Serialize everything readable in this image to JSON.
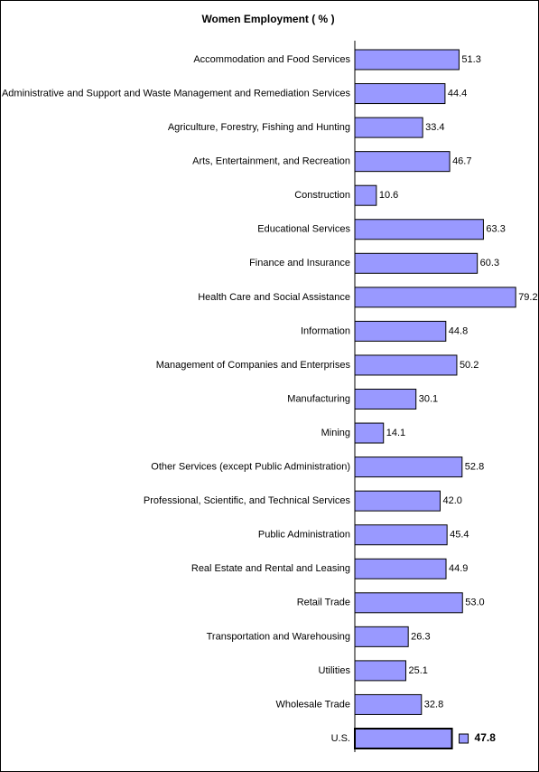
{
  "chart_data": {
    "type": "bar",
    "orientation": "horizontal",
    "title": "Women Employment ( % )",
    "categories": [
      "Accommodation and Food Services",
      "Administrative and Support and Waste Management and Remediation Services",
      "Agriculture, Forestry, Fishing and Hunting",
      "Arts, Entertainment, and Recreation",
      "Construction",
      "Educational Services",
      "Finance and Insurance",
      "Health Care and Social Assistance",
      "Information",
      "Management of Companies and Enterprises",
      "Manufacturing",
      "Mining",
      "Other Services (except Public Administration)",
      "Professional, Scientific, and Technical Services",
      "Public Administration",
      "Real Estate and Rental and Leasing",
      "Retail Trade",
      "Transportation and Warehousing",
      "Utilities",
      "Wholesale Trade",
      "U.S."
    ],
    "values": [
      51.3,
      44.4,
      33.4,
      46.7,
      10.6,
      63.3,
      60.3,
      79.2,
      44.8,
      50.2,
      30.1,
      14.1,
      52.8,
      42.0,
      45.4,
      44.9,
      53.0,
      26.3,
      25.1,
      32.8,
      47.8
    ],
    "value_labels": [
      "51.3",
      "44.4",
      "33.4",
      "46.7",
      "10.6",
      "63.3",
      "60.3",
      "79.2",
      "44.8",
      "50.2",
      "30.1",
      "14.1",
      "52.8",
      "42.0",
      "45.4",
      "44.9",
      "53.0",
      "26.3",
      "25.1",
      "32.8",
      "47.8"
    ],
    "color": "#9999ff"
  }
}
